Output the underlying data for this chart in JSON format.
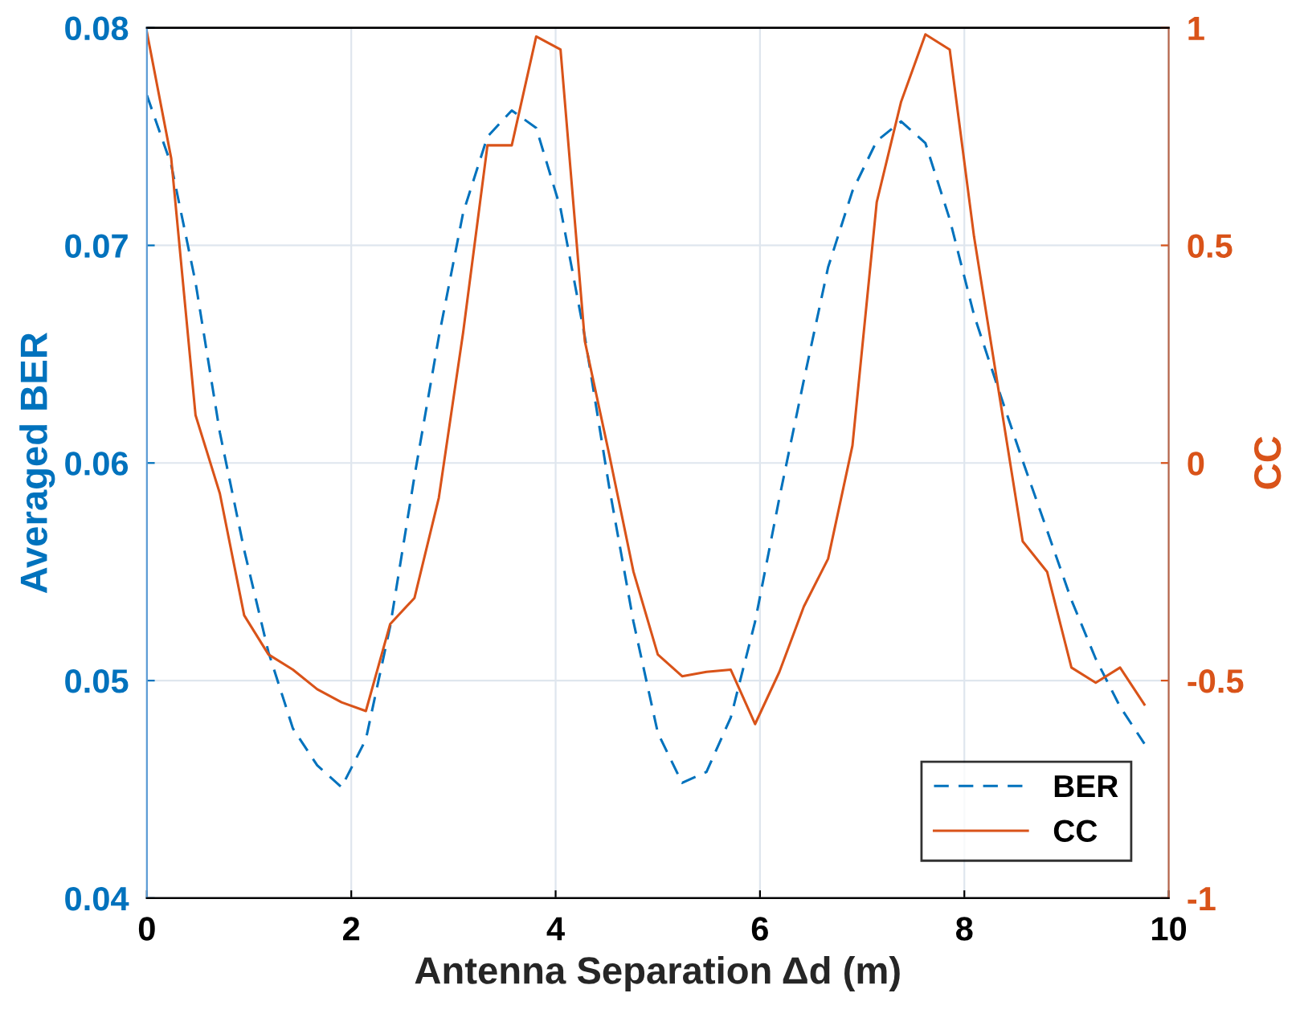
{
  "chart_data": {
    "type": "line",
    "xlabel": "Antenna Separation Δd (m)",
    "ylabel": "Averaged BER",
    "y2label": "CC",
    "x": [
      0,
      0.238,
      0.476,
      0.714,
      0.952,
      1.19,
      1.429,
      1.667,
      1.905,
      2.143,
      2.381,
      2.619,
      2.857,
      3.095,
      3.333,
      3.571,
      3.81,
      4.048,
      4.286,
      4.524,
      4.762,
      5.0,
      5.238,
      5.476,
      5.714,
      5.952,
      6.19,
      6.429,
      6.667,
      6.905,
      7.143,
      7.381,
      7.619,
      7.857,
      8.095,
      8.333,
      8.571,
      8.81,
      9.048,
      9.286,
      9.524,
      9.762
    ],
    "series": [
      {
        "name": "BER",
        "color": "#0072bd",
        "line_style": "dashed",
        "values": [
          0.0769,
          0.0737,
          0.0683,
          0.0614,
          0.056,
          0.0513,
          0.0478,
          0.0461,
          0.0451,
          0.0473,
          0.0525,
          0.0594,
          0.0658,
          0.0715,
          0.075,
          0.0762,
          0.0754,
          0.0717,
          0.0658,
          0.0589,
          0.0527,
          0.0476,
          0.0453,
          0.0458,
          0.0483,
          0.0527,
          0.0584,
          0.0638,
          0.069,
          0.0725,
          0.0748,
          0.0757,
          0.0747,
          0.0712,
          0.0668,
          0.0634,
          0.0601,
          0.0569,
          0.0537,
          0.051,
          0.0488,
          0.0471
        ]
      },
      {
        "name": "CC",
        "color": "#d95319",
        "line_style": "solid",
        "axis": "y2",
        "values": [
          0.99,
          0.7,
          0.11,
          -0.07,
          -0.35,
          -0.44,
          -0.475,
          -0.52,
          -0.55,
          -0.57,
          -0.37,
          -0.31,
          -0.08,
          0.3,
          0.73,
          0.73,
          0.98,
          0.95,
          0.28,
          0.02,
          -0.25,
          -0.44,
          -0.49,
          -0.48,
          -0.475,
          -0.6,
          -0.48,
          -0.33,
          -0.22,
          0.04,
          0.6,
          0.83,
          0.985,
          0.95,
          0.52,
          0.17,
          -0.18,
          -0.25,
          -0.47,
          -0.505,
          -0.47,
          -0.555
        ]
      }
    ],
    "xlim": [
      0,
      10
    ],
    "xticks": [
      0,
      2,
      4,
      6,
      8,
      10
    ],
    "ylim": [
      0.04,
      0.08
    ],
    "yticks": [
      0.04,
      0.05,
      0.06,
      0.07,
      0.08
    ],
    "y2lim": [
      -1,
      1
    ],
    "y2ticks": [
      -1,
      -0.5,
      0,
      0.5,
      1
    ],
    "grid": true,
    "legend": "bottom right",
    "marker": "none"
  }
}
